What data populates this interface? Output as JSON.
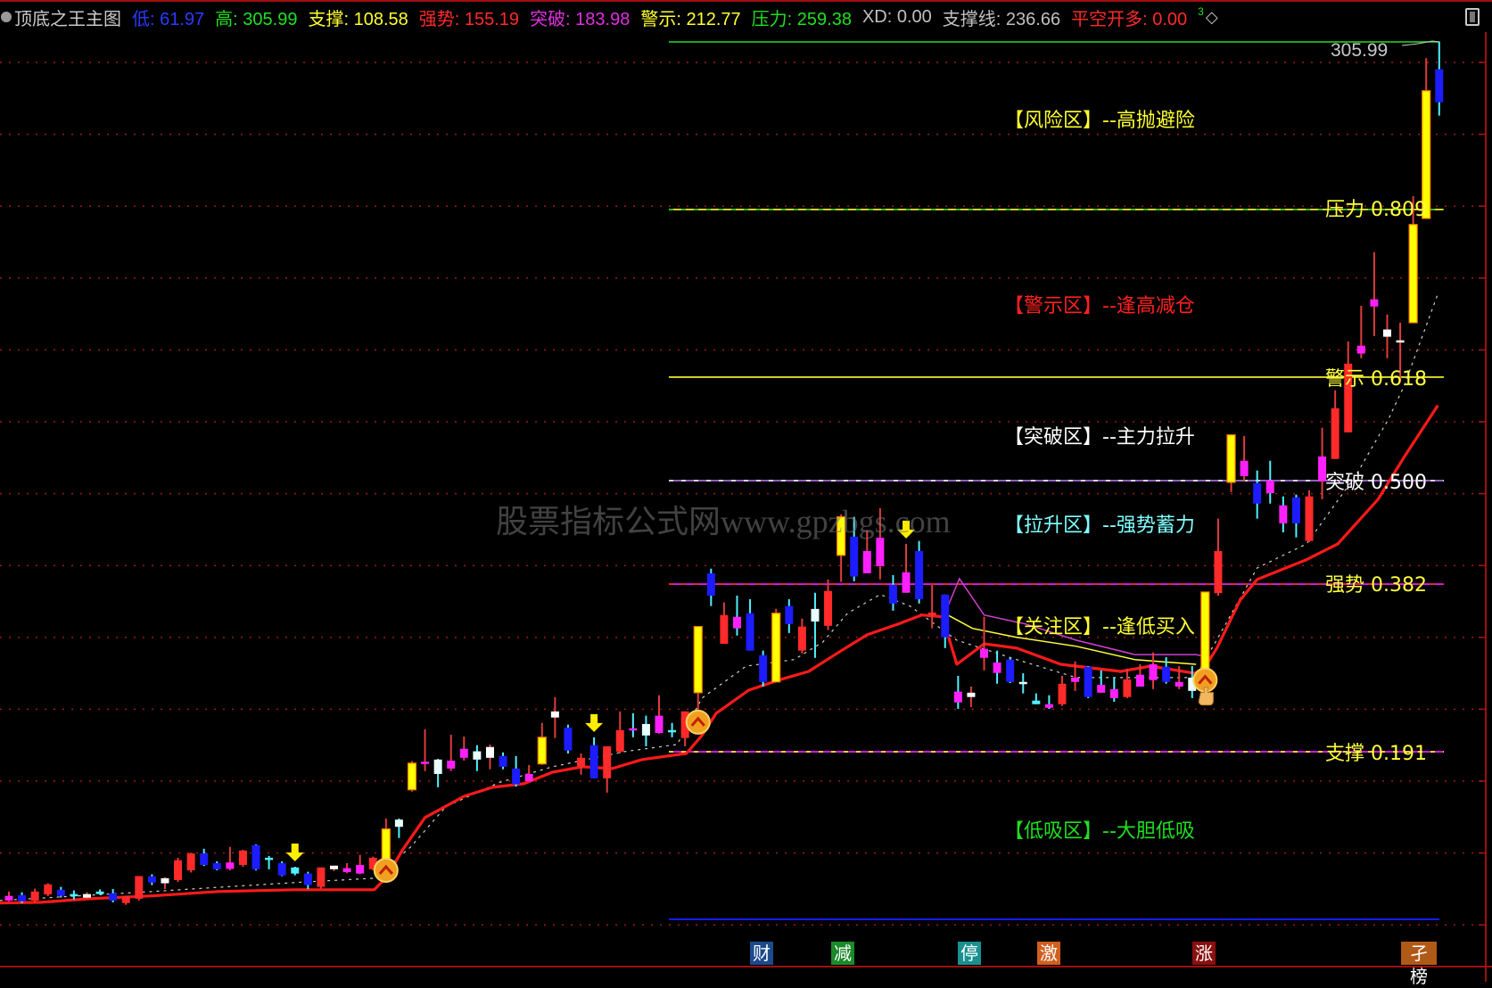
{
  "header": {
    "title": "顶底之王主图",
    "items": [
      {
        "label": "低: 61.97",
        "color": "#2a3cff"
      },
      {
        "label": "高: 305.99",
        "color": "#20e020"
      },
      {
        "label": "支撑: 108.58",
        "color": "#ffff30"
      },
      {
        "label": "强势: 155.19",
        "color": "#ff2a2a"
      },
      {
        "label": "突破: 183.98",
        "color": "#e030e0"
      },
      {
        "label": "警示: 212.77",
        "color": "#ffff30"
      },
      {
        "label": "压力: 259.38",
        "color": "#20e020"
      },
      {
        "label": "XD: 0.00",
        "color": "#c0c0c0"
      },
      {
        "label": "支撑线: 236.66",
        "color": "#c0c0c0"
      },
      {
        "label": "平空开多: 0.00",
        "color": "#ff2a2a"
      }
    ],
    "extra_3": "3",
    "extra_diamond": "◇"
  },
  "watermark": "股票指标公式网www.gpzbgs.com",
  "zones": [
    {
      "label": "【风险区】--高抛避险",
      "color": "#ffff30"
    },
    {
      "label": "【警示区】--逢高减仓",
      "color": "#ff2020"
    },
    {
      "label": "【突破区】--主力拉升",
      "color": "#ffffff"
    },
    {
      "label": "【拉升区】--强势蓄力",
      "color": "#80ffff"
    },
    {
      "label": "【关注区】--逢低买入",
      "color": "#ffff30"
    },
    {
      "label": "【低吸区】--大胆低吸",
      "color": "#20e020"
    }
  ],
  "badges": [
    {
      "label": "财",
      "color": "#1c4a8c"
    },
    {
      "label": "减",
      "color": "#1a8a2a"
    },
    {
      "label": "停",
      "color": "#1a9090"
    },
    {
      "label": "激",
      "color": "#d06020"
    },
    {
      "label": "涨",
      "color": "#8a1010"
    },
    {
      "label": "孑榜",
      "color": "#b05a18"
    }
  ],
  "chart_data": {
    "type": "candlestick",
    "ylim": [
      61.97,
      305.99
    ],
    "grid": true,
    "high_label": "305.99",
    "levels": [
      {
        "name": "压力",
        "ratio": 0.809,
        "price": 259.38,
        "label": "压力 0.809",
        "color": "#ffff30",
        "dash": "#20c020"
      },
      {
        "name": "警示",
        "ratio": 0.618,
        "price": 212.77,
        "label": "警示 0.618",
        "color": "#ffff30",
        "dash": "#ffff30"
      },
      {
        "name": "突破",
        "ratio": 0.5,
        "price": 183.98,
        "label": "突破 0.500",
        "color": "#c080ff",
        "dash": "#ffffff"
      },
      {
        "name": "强势",
        "ratio": 0.382,
        "price": 155.19,
        "label": "强势 0.382",
        "color": "#ff20ff",
        "dash": "#ff2020"
      },
      {
        "name": "支撑",
        "ratio": 0.191,
        "price": 108.58,
        "label": "支撑 0.191",
        "color": "#ff20ff",
        "dash": "#ffff30"
      }
    ],
    "high_line": {
      "price": 305.99,
      "color": "#20e020"
    },
    "low_line": {
      "price": 61.97,
      "color": "#1a1aff"
    },
    "candles": [
      [
        68.5,
        69.7,
        67.0,
        67.2,
        "m"
      ],
      [
        68.7,
        69.5,
        66.5,
        67.0,
        "b"
      ],
      [
        67.2,
        70.5,
        66.7,
        69.7,
        "r"
      ],
      [
        68.9,
        72.0,
        68.4,
        71.7,
        "r"
      ],
      [
        70.2,
        71.0,
        68.0,
        68.5,
        "b"
      ],
      [
        69.0,
        70.0,
        67.5,
        68.5,
        "c"
      ],
      [
        68.0,
        69.5,
        67.7,
        69.0,
        "w"
      ],
      [
        69.7,
        70.3,
        68.9,
        69.0,
        "c"
      ],
      [
        69.2,
        70.4,
        66.7,
        67.2,
        "b"
      ],
      [
        66.5,
        68.5,
        66.0,
        68.5,
        "r"
      ],
      [
        67.7,
        74.0,
        67.2,
        74.0,
        "r"
      ],
      [
        73.9,
        74.5,
        71.5,
        72.2,
        "b"
      ],
      [
        72.0,
        73.7,
        70.4,
        73.4,
        "w"
      ],
      [
        72.9,
        79.1,
        72.4,
        78.4,
        "r"
      ],
      [
        75.6,
        80.5,
        75.0,
        80.3,
        "r"
      ],
      [
        80.3,
        81.6,
        76.8,
        77.1,
        "b"
      ],
      [
        77.6,
        78.1,
        75.6,
        75.9,
        "b"
      ],
      [
        76.0,
        82.1,
        75.6,
        77.8,
        "m"
      ],
      [
        77.1,
        81.3,
        76.6,
        81.1,
        "r"
      ],
      [
        82.6,
        82.8,
        75.6,
        75.9,
        "b"
      ],
      [
        79.1,
        79.6,
        75.9,
        78.6,
        "c"
      ],
      [
        77.6,
        78.1,
        74.0,
        74.2,
        "b"
      ],
      [
        76.4,
        76.6,
        74.2,
        74.7,
        "c"
      ],
      [
        74.7,
        75.2,
        70.4,
        71.5,
        "b"
      ],
      [
        71.0,
        76.4,
        70.5,
        76.4,
        "r"
      ],
      [
        75.9,
        76.9,
        75.4,
        76.9,
        "w"
      ],
      [
        75.1,
        77.6,
        74.8,
        76.2,
        "m"
      ],
      [
        74.7,
        79.9,
        74.5,
        77.1,
        "m"
      ],
      [
        75.9,
        79.4,
        75.6,
        79.1,
        "r"
      ],
      [
        78.6,
        90.0,
        78.1,
        87.1,
        "y"
      ],
      [
        89.7,
        90.0,
        84.6,
        87.7,
        "wc"
      ],
      [
        98.0,
        106.0,
        97.5,
        105.4,
        "y"
      ],
      [
        105.3,
        114.8,
        103.2,
        105.8,
        "m"
      ],
      [
        106.4,
        106.6,
        98.7,
        102.4,
        "wc"
      ],
      [
        103.9,
        113.3,
        103.2,
        106.1,
        "m"
      ],
      [
        106.9,
        112.8,
        106.1,
        109.4,
        "m"
      ],
      [
        108.7,
        110.4,
        103.2,
        106.4,
        "wc"
      ],
      [
        106.9,
        110.6,
        103.7,
        109.9,
        "w"
      ],
      [
        107.4,
        108.4,
        103.7,
        104.4,
        "b"
      ],
      [
        103.9,
        107.4,
        98.9,
        99.5,
        "b"
      ],
      [
        100.4,
        104.9,
        100.2,
        102.4,
        "m"
      ],
      [
        105.2,
        116.6,
        104.9,
        112.6,
        "y"
      ],
      [
        118.1,
        123.8,
        112.4,
        119.8,
        "w"
      ],
      [
        115.3,
        116.1,
        108.1,
        108.9,
        "b"
      ],
      [
        104.4,
        108.1,
        102.2,
        106.9,
        "r"
      ],
      [
        110.4,
        112.6,
        101.2,
        101.2,
        "b"
      ],
      [
        101.2,
        110.1,
        97.2,
        110.1,
        "r"
      ],
      [
        108.6,
        119.8,
        108.1,
        114.6,
        "r"
      ],
      [
        114.8,
        119.3,
        112.6,
        115.1,
        "mc"
      ],
      [
        116.3,
        118.6,
        110.1,
        113.1,
        "wc"
      ],
      [
        113.8,
        124.3,
        113.6,
        118.6,
        "m"
      ],
      [
        114.6,
        116.6,
        112.6,
        114.3,
        "c"
      ],
      [
        112.4,
        119.8,
        110.1,
        119.8,
        "r"
      ],
      [
        125.0,
        143.4,
        119.3,
        143.4,
        "y"
      ],
      [
        158.2,
        159.5,
        149.1,
        152.0,
        "b"
      ],
      [
        138.6,
        150.1,
        138.6,
        146.6,
        "r"
      ],
      [
        146.1,
        152.0,
        140.9,
        142.9,
        "mc"
      ],
      [
        147.1,
        151.0,
        136.7,
        136.7,
        "b"
      ],
      [
        135.4,
        136.7,
        126.7,
        128.0,
        "b"
      ],
      [
        128.0,
        148.3,
        128.0,
        147.1,
        "y"
      ],
      [
        149.1,
        151.0,
        141.6,
        144.1,
        "b"
      ],
      [
        136.7,
        145.6,
        135.9,
        143.4,
        "r"
      ],
      [
        148.3,
        152.8,
        134.7,
        144.8,
        "wc"
      ],
      [
        143.6,
        156.5,
        142.4,
        153.3,
        "r"
      ],
      [
        163.2,
        174.6,
        155.8,
        173.9,
        "y"
      ],
      [
        168.4,
        173.9,
        156.0,
        157.3,
        "b"
      ],
      [
        158.2,
        170.1,
        158.2,
        164.4,
        "m"
      ],
      [
        160.2,
        176.3,
        156.5,
        168.1,
        "m"
      ],
      [
        155.0,
        157.7,
        147.8,
        149.8,
        "b"
      ],
      [
        152.8,
        166.4,
        152.8,
        158.5,
        "m"
      ],
      [
        164.4,
        167.2,
        149.8,
        151.0,
        "b"
      ],
      [
        146.6,
        155.0,
        142.9,
        147.3,
        "r"
      ],
      [
        152.3,
        152.3,
        137.4,
        140.4,
        "b"
      ],
      [
        125.3,
        129.7,
        120.5,
        122.3,
        "mc"
      ],
      [
        123.8,
        126.7,
        121.0,
        125.0,
        "w"
      ],
      [
        134.7,
        146.1,
        131.2,
        137.2,
        "m"
      ],
      [
        133.4,
        136.7,
        127.5,
        130.5,
        "mc"
      ],
      [
        134.2,
        134.7,
        127.7,
        128.0,
        "b"
      ],
      [
        128.0,
        130.4,
        124.8,
        127.5,
        "wc"
      ],
      [
        122.8,
        124.8,
        121.8,
        121.8,
        "c"
      ],
      [
        121.8,
        124.3,
        120.5,
        120.8,
        "mc"
      ],
      [
        121.8,
        129.7,
        121.3,
        127.5,
        "r"
      ],
      [
        128.0,
        133.7,
        125.5,
        129.2,
        "m"
      ],
      [
        132.2,
        132.4,
        123.5,
        123.8,
        "b"
      ],
      [
        127.2,
        131.2,
        125.0,
        125.0,
        "mc"
      ],
      [
        126.0,
        129.2,
        122.5,
        123.5,
        "mc"
      ],
      [
        123.8,
        131.7,
        123.5,
        128.7,
        "r"
      ],
      [
        126.7,
        132.9,
        126.7,
        130.0,
        "m"
      ],
      [
        128.5,
        136.2,
        126.0,
        132.9,
        "m"
      ],
      [
        132.2,
        134.9,
        127.5,
        128.0,
        "b"
      ],
      [
        126.7,
        132.4,
        126.0,
        128.0,
        "m"
      ],
      [
        129.2,
        132.4,
        123.5,
        125.5,
        "wc"
      ],
      [
        131.7,
        153.0,
        131.0,
        153.0,
        "y"
      ],
      [
        152.7,
        173.4,
        152.0,
        164.4,
        "r"
      ],
      [
        183.5,
        196.7,
        180.8,
        196.7,
        "y"
      ],
      [
        185.2,
        196.4,
        183.8,
        189.5,
        "m"
      ],
      [
        183.3,
        186.8,
        173.4,
        177.6,
        "b"
      ],
      [
        184.1,
        189.5,
        177.6,
        180.5,
        "mc"
      ],
      [
        177.1,
        179.6,
        169.6,
        172.1,
        "mc"
      ],
      [
        179.3,
        180.1,
        168.2,
        172.1,
        "b"
      ],
      [
        167.2,
        181.3,
        166.9,
        179.6,
        "r"
      ],
      [
        183.8,
        198.7,
        178.8,
        190.7,
        "m"
      ],
      [
        190.0,
        209.1,
        190.0,
        204.1,
        "r"
      ],
      [
        197.4,
        222.7,
        197.4,
        216.5,
        "r"
      ],
      [
        219.3,
        232.6,
        218.0,
        221.5,
        "m"
      ],
      [
        232.4,
        247.5,
        224.2,
        234.4,
        "m"
      ],
      [
        224.0,
        230.2,
        218.0,
        226.0,
        "w"
      ],
      [
        222.5,
        227.9,
        211.6,
        223.0,
        "w"
      ],
      [
        227.9,
        263.1,
        227.9,
        255.2,
        "y"
      ],
      [
        256.9,
        301.5,
        256.9,
        292.4,
        "y"
      ],
      [
        298.4,
        305.99,
        285.5,
        289.2,
        "b"
      ]
    ],
    "ma_line": {
      "color": "#ff1a1a",
      "points": [
        [
          -0.7,
          66.5
        ],
        [
          2.5,
          66.7
        ],
        [
          6.2,
          67.7
        ],
        [
          11,
          68.5
        ],
        [
          16.1,
          69.7
        ],
        [
          22,
          70.2
        ],
        [
          28.1,
          70.2
        ],
        [
          29.1,
          73.9
        ],
        [
          30.2,
          80.9
        ],
        [
          32,
          90.3
        ],
        [
          35,
          96.2
        ],
        [
          37.2,
          98.7
        ],
        [
          39.6,
          99.7
        ],
        [
          41.8,
          102.9
        ],
        [
          44.1,
          104.4
        ],
        [
          46.4,
          103.9
        ],
        [
          48.7,
          106.4
        ],
        [
          52.1,
          108.1
        ],
        [
          53.3,
          113.1
        ],
        [
          54.4,
          119.3
        ],
        [
          56.9,
          125.7
        ],
        [
          59.2,
          128.5
        ],
        [
          61.5,
          130.9
        ],
        [
          63.8,
          136.2
        ],
        [
          66,
          141.1
        ],
        [
          68.4,
          144.1
        ],
        [
          70.2,
          146.6
        ],
        [
          71.8,
          146.1
        ],
        [
          72.9,
          132.9
        ],
        [
          75,
          138.6
        ],
        [
          77.5,
          137.4
        ],
        [
          80.9,
          132.9
        ],
        [
          85.5,
          130.9
        ],
        [
          87.8,
          132.4
        ],
        [
          91.2,
          130.4
        ],
        [
          92,
          132.2
        ],
        [
          92.9,
          137.4
        ],
        [
          94.7,
          150.8
        ],
        [
          96,
          156.5
        ],
        [
          99.8,
          162.0
        ],
        [
          102.2,
          166.4
        ],
        [
          105.3,
          178.8
        ],
        [
          107.3,
          190.5
        ],
        [
          109.9,
          204.9
        ]
      ]
    },
    "dotted_line": {
      "color": "#d0d0d0",
      "points": [
        [
          -0.7,
          67.2
        ],
        [
          11,
          69.7
        ],
        [
          22,
          72.2
        ],
        [
          28.1,
          73.4
        ],
        [
          30.9,
          82.1
        ],
        [
          33.6,
          93.3
        ],
        [
          37.7,
          100.0
        ],
        [
          41.8,
          104.4
        ],
        [
          47.3,
          108.6
        ],
        [
          51.4,
          110.6
        ],
        [
          53.3,
          123.5
        ],
        [
          56.7,
          132.4
        ],
        [
          60.4,
          134.2
        ],
        [
          62.6,
          139.1
        ],
        [
          64.5,
          147.1
        ],
        [
          67,
          152.3
        ],
        [
          69.3,
          149.1
        ],
        [
          72.9,
          139.6
        ],
        [
          77.5,
          134.2
        ],
        [
          82.1,
          129.2
        ],
        [
          86.6,
          129.2
        ],
        [
          91.2,
          129.2
        ],
        [
          92.8,
          139.1
        ],
        [
          96,
          159.7
        ],
        [
          99.8,
          166.4
        ],
        [
          103.6,
          185.5
        ],
        [
          106.1,
          201.1
        ],
        [
          107.3,
          210.3
        ],
        [
          109.9,
          235.9
        ]
      ]
    },
    "magenta_line": {
      "color": "#d040d0",
      "points": [
        [
          72.2,
          148.9
        ],
        [
          73.1,
          156.7
        ],
        [
          75,
          146.6
        ],
        [
          78.2,
          144.1
        ],
        [
          82.1,
          139.6
        ],
        [
          86.6,
          135.6
        ],
        [
          91.3,
          135.6
        ],
        [
          92,
          135.1
        ]
      ]
    },
    "yellow_line": {
      "color": "#ffff40",
      "points": [
        [
          72.2,
          146.6
        ],
        [
          74.1,
          142.9
        ],
        [
          77.5,
          140.4
        ],
        [
          82.1,
          137.9
        ],
        [
          86.6,
          134.2
        ],
        [
          91.3,
          132.9
        ]
      ]
    },
    "sell_arrows": [
      22,
      45,
      69
    ],
    "buy_signals": [
      29,
      53,
      92
    ]
  }
}
